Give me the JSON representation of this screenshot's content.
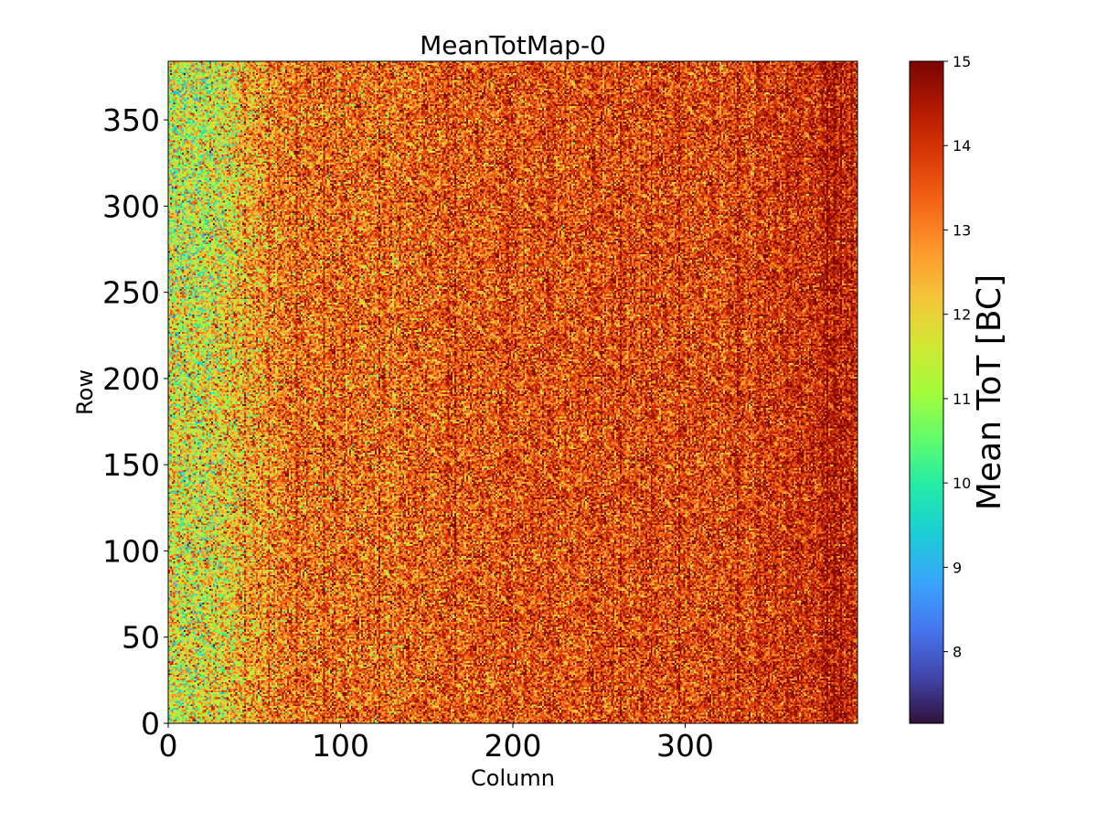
{
  "chart_data": {
    "type": "heatmap",
    "title": "MeanTotMap-0",
    "xlabel": "Column",
    "ylabel": "Row",
    "xlim": [
      0,
      400
    ],
    "ylim": [
      0,
      384
    ],
    "x_ticks": [
      0,
      100,
      200,
      300
    ],
    "x_tick_labels": [
      "0",
      "100",
      "200",
      "300"
    ],
    "y_ticks": [
      0,
      50,
      100,
      150,
      200,
      250,
      300,
      350
    ],
    "y_tick_labels": [
      "0",
      "50",
      "100",
      "150",
      "200",
      "250",
      "300",
      "350"
    ],
    "colormap": "turbo",
    "colorbar": {
      "label": "Mean ToT [BC]",
      "range": [
        7.15,
        15
      ],
      "ticks": [
        8,
        9,
        10,
        11,
        12,
        13,
        14,
        15
      ],
      "tick_labels": [
        "8",
        "9",
        "10",
        "11",
        "12",
        "13",
        "14",
        "15"
      ]
    },
    "value_profile": {
      "description": "noisy per-pixel Mean ToT; lower (green/yellow) on left columns, higher (red) toward right, with darker vertical stripes",
      "column_bands": [
        {
          "column_range": [
            0,
            40
          ],
          "mean": 11.7,
          "spread": 1.3
        },
        {
          "column_range": [
            40,
            90
          ],
          "mean": 13.2,
          "spread": 1.0
        },
        {
          "column_range": [
            90,
            160
          ],
          "mean": 13.3,
          "spread": 1.0
        },
        {
          "column_range": [
            160,
            260
          ],
          "mean": 13.6,
          "spread": 0.9
        },
        {
          "column_range": [
            260,
            360
          ],
          "mean": 13.7,
          "spread": 0.9
        },
        {
          "column_range": [
            360,
            400
          ],
          "mean": 14.1,
          "spread": 0.8
        }
      ],
      "dark_stripe_columns": [
        44,
        58,
        74,
        90,
        122,
        162,
        166,
        196,
        246,
        262,
        280,
        296,
        330,
        382,
        386,
        390,
        396
      ]
    }
  }
}
